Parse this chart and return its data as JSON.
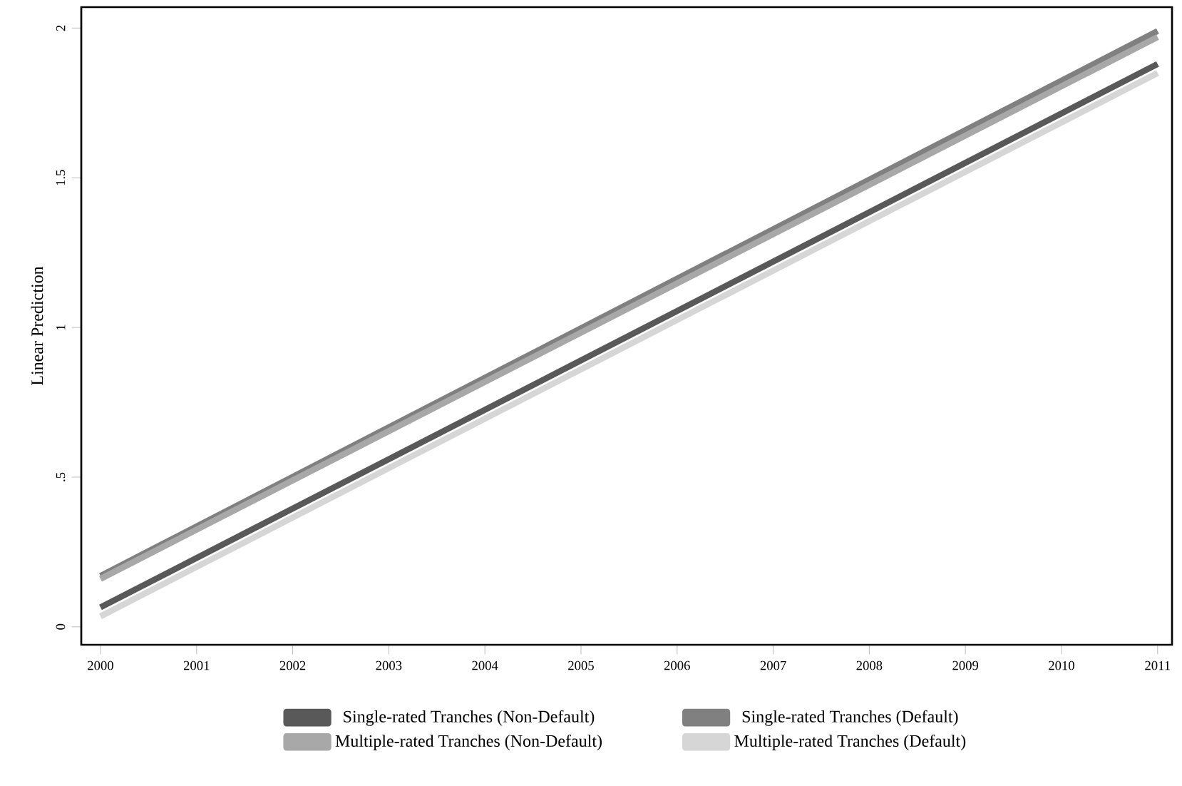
{
  "chart_data": {
    "type": "line",
    "ylabel": "Linear Prediction",
    "x": [
      2000,
      2011
    ],
    "series": [
      {
        "name": "Single-rated Tranches (Non-Default)",
        "color": "#595959",
        "values": [
          0.065,
          1.88
        ]
      },
      {
        "name": "Single-rated Tranches (Default)",
        "color": "#808080",
        "values": [
          0.17,
          1.99
        ]
      },
      {
        "name": "Multiple-rated Tranches (Non-Default)",
        "color": "#a8a8a8",
        "values": [
          0.16,
          1.97
        ]
      },
      {
        "name": "Multiple-rated Tranches (Default)",
        "color": "#d6d6d6",
        "values": [
          0.035,
          1.85
        ]
      }
    ],
    "xlim": [
      1999.8,
      2011.15
    ],
    "ylim": [
      -0.06,
      2.07
    ],
    "xticks": [
      2000,
      2001,
      2002,
      2003,
      2004,
      2005,
      2006,
      2007,
      2008,
      2009,
      2010,
      2011
    ],
    "yticks": [
      0,
      {
        "value": 0.5,
        "label": ".5"
      },
      1,
      1.5,
      2
    ],
    "grid": false,
    "legend": "bottom",
    "marker": "none",
    "line_style": "solid"
  }
}
